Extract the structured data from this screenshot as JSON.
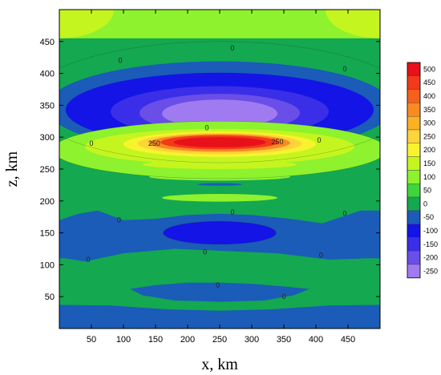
{
  "chart_data": {
    "type": "heatmap",
    "subtype": "filled-contour",
    "xlabel": "x, km",
    "ylabel": "z, km",
    "xlim": [
      0,
      500
    ],
    "ylim": [
      0,
      500
    ],
    "x_ticks": [
      50,
      100,
      150,
      200,
      250,
      300,
      350,
      400,
      450
    ],
    "y_ticks": [
      50,
      100,
      150,
      200,
      250,
      300,
      350,
      400,
      450
    ],
    "grid": false,
    "legend_placement": "right (colorbar)",
    "colorbar": {
      "levels": [
        500,
        450,
        400,
        350,
        300,
        250,
        200,
        150,
        100,
        50,
        0,
        -50,
        -100,
        -150,
        -200,
        -250
      ],
      "colors": [
        "#e8101a",
        "#f23a1a",
        "#f7601c",
        "#fb8a20",
        "#fdb024",
        "#fdd53a",
        "#f7f42e",
        "#c5f51e",
        "#8ef22e",
        "#3ed63a",
        "#14a850",
        "#1a5cb8",
        "#1414e6",
        "#3a2ee8",
        "#6a4ee8",
        "#a07af0"
      ]
    },
    "background_value_color": "#14a850",
    "regions": [
      {
        "name": "strong-negative-upper",
        "x": [
          100,
          400
        ],
        "z": [
          300,
          380
        ],
        "min_value": -250
      },
      {
        "name": "strong-positive-core",
        "x": [
          170,
          340
        ],
        "z": [
          280,
          300
        ],
        "max_value": 500
      },
      {
        "name": "negative-middle",
        "x": [
          160,
          340
        ],
        "z": [
          130,
          170
        ],
        "min_value": -100
      },
      {
        "name": "negative-lower",
        "x": [
          110,
          390
        ],
        "z": [
          50,
          70
        ],
        "min_value": -50
      },
      {
        "name": "negative-bottom-band",
        "x": [
          0,
          500
        ],
        "z": [
          0,
          35
        ],
        "min_value": -50
      }
    ],
    "contour_labels": [
      {
        "text": "0",
        "x": 270,
        "z": 440
      },
      {
        "text": "0",
        "x": 95,
        "z": 420
      },
      {
        "text": "0",
        "x": 445,
        "z": 407
      },
      {
        "text": "0",
        "x": 230,
        "z": 315
      },
      {
        "text": "0",
        "x": 50,
        "z": 290
      },
      {
        "text": "0",
        "x": 405,
        "z": 295
      },
      {
        "text": "250",
        "x": 148,
        "z": 290
      },
      {
        "text": "250",
        "x": 340,
        "z": 293
      },
      {
        "text": "0",
        "x": 270,
        "z": 182
      },
      {
        "text": "0",
        "x": 93,
        "z": 170
      },
      {
        "text": "0",
        "x": 445,
        "z": 180
      },
      {
        "text": "0",
        "x": 227,
        "z": 120
      },
      {
        "text": "0",
        "x": 45,
        "z": 108
      },
      {
        "text": "0",
        "x": 408,
        "z": 115
      },
      {
        "text": "0",
        "x": 247,
        "z": 68
      },
      {
        "text": "0",
        "x": 350,
        "z": 50
      }
    ]
  }
}
